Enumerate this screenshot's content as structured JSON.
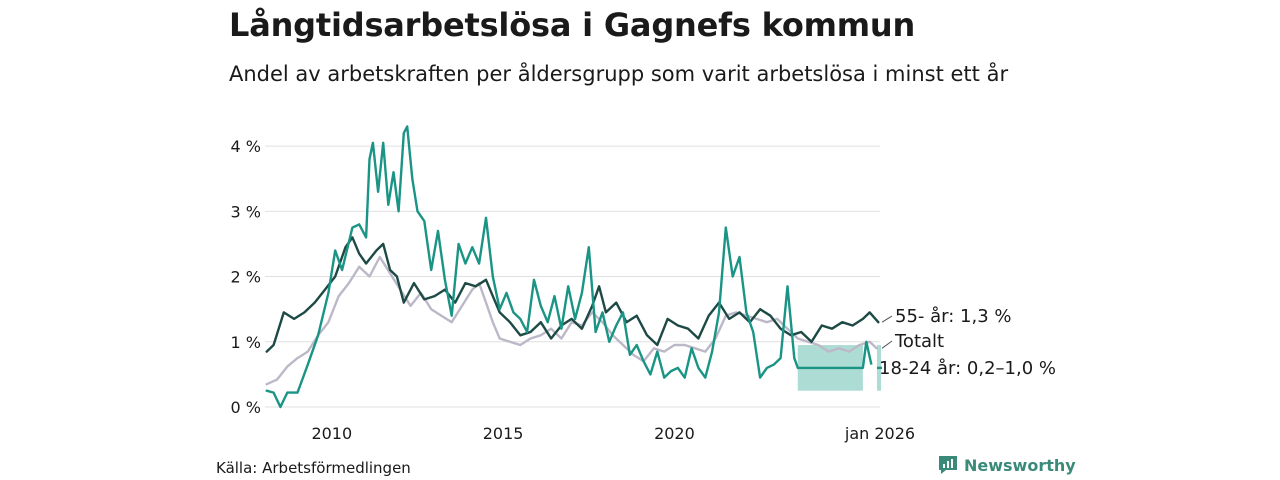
{
  "title": "Långtidsarbetslösa i Gagnefs kommun",
  "subtitle": "Andel av arbetskraften per åldersgrupp som varit arbetslösa i minst ett år",
  "source": "Källa: Arbetsförmedlingen",
  "brand": "Newsworthy",
  "colors": {
    "young": "#1a9485",
    "total": "#bdb8c8",
    "older": "#1e4a45",
    "band": "#9fd6cd",
    "grid": "#e0e0e0",
    "brand": "#3a8a7a"
  },
  "chart_data": {
    "type": "line",
    "ylim": [
      0,
      4.4
    ],
    "yticks": [
      0,
      1,
      2,
      3,
      4
    ],
    "ytick_labels": [
      "0 %",
      "1 %",
      "2 %",
      "3 %",
      "4 %"
    ],
    "xlim": [
      2008.05,
      2026.0
    ],
    "xticks": [
      2010,
      2015,
      2020,
      2026.0
    ],
    "xtick_labels": [
      "2010",
      "2015",
      "2020",
      "jan 2026"
    ],
    "series": [
      {
        "name": "Totalt",
        "label": "Totalt",
        "color": "#bdb8c8",
        "points": [
          [
            2008.1,
            0.35
          ],
          [
            2008.4,
            0.42
          ],
          [
            2008.7,
            0.62
          ],
          [
            2009.0,
            0.75
          ],
          [
            2009.3,
            0.85
          ],
          [
            2009.6,
            1.1
          ],
          [
            2009.9,
            1.3
          ],
          [
            2010.2,
            1.7
          ],
          [
            2010.5,
            1.9
          ],
          [
            2010.8,
            2.15
          ],
          [
            2011.1,
            2.0
          ],
          [
            2011.4,
            2.3
          ],
          [
            2011.7,
            2.05
          ],
          [
            2012.0,
            1.8
          ],
          [
            2012.3,
            1.55
          ],
          [
            2012.6,
            1.75
          ],
          [
            2012.9,
            1.5
          ],
          [
            2013.2,
            1.4
          ],
          [
            2013.5,
            1.3
          ],
          [
            2013.8,
            1.55
          ],
          [
            2014.1,
            1.8
          ],
          [
            2014.3,
            1.9
          ],
          [
            2014.5,
            1.6
          ],
          [
            2014.7,
            1.3
          ],
          [
            2014.9,
            1.05
          ],
          [
            2015.2,
            1.0
          ],
          [
            2015.5,
            0.95
          ],
          [
            2015.8,
            1.05
          ],
          [
            2016.1,
            1.1
          ],
          [
            2016.4,
            1.2
          ],
          [
            2016.7,
            1.05
          ],
          [
            2017.0,
            1.3
          ],
          [
            2017.3,
            1.25
          ],
          [
            2017.6,
            1.45
          ],
          [
            2017.9,
            1.3
          ],
          [
            2018.2,
            1.1
          ],
          [
            2018.5,
            0.95
          ],
          [
            2018.8,
            0.8
          ],
          [
            2019.1,
            0.7
          ],
          [
            2019.4,
            0.9
          ],
          [
            2019.7,
            0.85
          ],
          [
            2020.0,
            0.95
          ],
          [
            2020.3,
            0.95
          ],
          [
            2020.6,
            0.9
          ],
          [
            2020.9,
            0.85
          ],
          [
            2021.2,
            1.05
          ],
          [
            2021.5,
            1.4
          ],
          [
            2021.8,
            1.45
          ],
          [
            2022.1,
            1.4
          ],
          [
            2022.4,
            1.35
          ],
          [
            2022.7,
            1.3
          ],
          [
            2023.0,
            1.35
          ],
          [
            2023.3,
            1.2
          ],
          [
            2023.6,
            1.05
          ],
          [
            2023.9,
            1.0
          ],
          [
            2024.2,
            0.95
          ],
          [
            2024.5,
            0.85
          ],
          [
            2024.8,
            0.9
          ],
          [
            2025.1,
            0.85
          ],
          [
            2025.4,
            0.95
          ],
          [
            2025.7,
            1.0
          ],
          [
            2025.9,
            0.9
          ]
        ]
      },
      {
        "name": "55- år",
        "label": "55- år: 1,3 %",
        "color": "#1e4a45",
        "points": [
          [
            2008.1,
            0.85
          ],
          [
            2008.3,
            0.95
          ],
          [
            2008.6,
            1.45
          ],
          [
            2008.9,
            1.35
          ],
          [
            2009.2,
            1.45
          ],
          [
            2009.5,
            1.6
          ],
          [
            2009.8,
            1.8
          ],
          [
            2010.1,
            2.0
          ],
          [
            2010.4,
            2.45
          ],
          [
            2010.6,
            2.6
          ],
          [
            2010.8,
            2.35
          ],
          [
            2011.0,
            2.2
          ],
          [
            2011.3,
            2.4
          ],
          [
            2011.5,
            2.5
          ],
          [
            2011.7,
            2.1
          ],
          [
            2011.9,
            2.0
          ],
          [
            2012.1,
            1.6
          ],
          [
            2012.4,
            1.9
          ],
          [
            2012.7,
            1.65
          ],
          [
            2013.0,
            1.7
          ],
          [
            2013.3,
            1.8
          ],
          [
            2013.6,
            1.6
          ],
          [
            2013.9,
            1.9
          ],
          [
            2014.2,
            1.85
          ],
          [
            2014.5,
            1.95
          ],
          [
            2014.7,
            1.7
          ],
          [
            2014.9,
            1.45
          ],
          [
            2015.2,
            1.3
          ],
          [
            2015.5,
            1.1
          ],
          [
            2015.8,
            1.15
          ],
          [
            2016.1,
            1.3
          ],
          [
            2016.4,
            1.05
          ],
          [
            2016.7,
            1.25
          ],
          [
            2017.0,
            1.35
          ],
          [
            2017.3,
            1.2
          ],
          [
            2017.6,
            1.55
          ],
          [
            2017.8,
            1.85
          ],
          [
            2018.0,
            1.45
          ],
          [
            2018.3,
            1.6
          ],
          [
            2018.6,
            1.3
          ],
          [
            2018.9,
            1.4
          ],
          [
            2019.2,
            1.1
          ],
          [
            2019.5,
            0.95
          ],
          [
            2019.8,
            1.35
          ],
          [
            2020.1,
            1.25
          ],
          [
            2020.4,
            1.2
          ],
          [
            2020.7,
            1.05
          ],
          [
            2021.0,
            1.4
          ],
          [
            2021.3,
            1.6
          ],
          [
            2021.6,
            1.35
          ],
          [
            2021.9,
            1.45
          ],
          [
            2022.2,
            1.3
          ],
          [
            2022.5,
            1.5
          ],
          [
            2022.8,
            1.4
          ],
          [
            2023.1,
            1.2
          ],
          [
            2023.4,
            1.1
          ],
          [
            2023.7,
            1.15
          ],
          [
            2024.0,
            1.0
          ],
          [
            2024.3,
            1.25
          ],
          [
            2024.6,
            1.2
          ],
          [
            2024.9,
            1.3
          ],
          [
            2025.2,
            1.25
          ],
          [
            2025.5,
            1.35
          ],
          [
            2025.7,
            1.45
          ],
          [
            2025.95,
            1.3
          ]
        ]
      },
      {
        "name": "18-24 år",
        "label": "18-24 år: 0,2–1,0 %",
        "color": "#1a9485",
        "points": [
          [
            2008.1,
            0.25
          ],
          [
            2008.3,
            0.22
          ],
          [
            2008.5,
            0.0
          ],
          [
            2008.7,
            0.22
          ],
          [
            2009.0,
            0.22
          ],
          [
            2009.3,
            0.65
          ],
          [
            2009.6,
            1.1
          ],
          [
            2009.9,
            1.75
          ],
          [
            2010.1,
            2.4
          ],
          [
            2010.3,
            2.1
          ],
          [
            2010.6,
            2.75
          ],
          [
            2010.8,
            2.8
          ],
          [
            2011.0,
            2.6
          ],
          [
            2011.1,
            3.8
          ],
          [
            2011.2,
            4.05
          ],
          [
            2011.35,
            3.3
          ],
          [
            2011.5,
            4.05
          ],
          [
            2011.65,
            3.1
          ],
          [
            2011.8,
            3.6
          ],
          [
            2011.95,
            3.0
          ],
          [
            2012.1,
            4.2
          ],
          [
            2012.2,
            4.3
          ],
          [
            2012.35,
            3.5
          ],
          [
            2012.5,
            3.0
          ],
          [
            2012.7,
            2.85
          ],
          [
            2012.9,
            2.1
          ],
          [
            2013.1,
            2.7
          ],
          [
            2013.3,
            1.95
          ],
          [
            2013.5,
            1.4
          ],
          [
            2013.7,
            2.5
          ],
          [
            2013.9,
            2.2
          ],
          [
            2014.1,
            2.45
          ],
          [
            2014.3,
            2.2
          ],
          [
            2014.5,
            2.9
          ],
          [
            2014.7,
            2.0
          ],
          [
            2014.9,
            1.5
          ],
          [
            2015.1,
            1.75
          ],
          [
            2015.3,
            1.45
          ],
          [
            2015.5,
            1.35
          ],
          [
            2015.7,
            1.15
          ],
          [
            2015.9,
            1.95
          ],
          [
            2016.1,
            1.55
          ],
          [
            2016.3,
            1.3
          ],
          [
            2016.5,
            1.7
          ],
          [
            2016.7,
            1.2
          ],
          [
            2016.9,
            1.85
          ],
          [
            2017.1,
            1.35
          ],
          [
            2017.3,
            1.75
          ],
          [
            2017.5,
            2.45
          ],
          [
            2017.7,
            1.15
          ],
          [
            2017.9,
            1.45
          ],
          [
            2018.1,
            1.0
          ],
          [
            2018.3,
            1.25
          ],
          [
            2018.5,
            1.45
          ],
          [
            2018.7,
            0.8
          ],
          [
            2018.9,
            0.95
          ],
          [
            2019.1,
            0.7
          ],
          [
            2019.3,
            0.5
          ],
          [
            2019.5,
            0.85
          ],
          [
            2019.7,
            0.45
          ],
          [
            2019.9,
            0.55
          ],
          [
            2020.1,
            0.6
          ],
          [
            2020.3,
            0.45
          ],
          [
            2020.5,
            0.9
          ],
          [
            2020.7,
            0.6
          ],
          [
            2020.9,
            0.45
          ],
          [
            2021.1,
            0.85
          ],
          [
            2021.3,
            1.45
          ],
          [
            2021.5,
            2.75
          ],
          [
            2021.7,
            2.0
          ],
          [
            2021.9,
            2.3
          ],
          [
            2022.1,
            1.45
          ],
          [
            2022.3,
            1.15
          ],
          [
            2022.5,
            0.45
          ],
          [
            2022.7,
            0.6
          ],
          [
            2022.9,
            0.65
          ],
          [
            2023.1,
            0.75
          ],
          [
            2023.3,
            1.85
          ],
          [
            2023.5,
            0.75
          ]
        ],
        "estimated": {
          "x_start": 2023.6,
          "x_end": 2025.5,
          "value": 0.6,
          "band_low": 0.25,
          "band_high": 0.95,
          "end_value": 0.6,
          "end_band": [
            0.25,
            0.95
          ]
        }
      }
    ]
  }
}
